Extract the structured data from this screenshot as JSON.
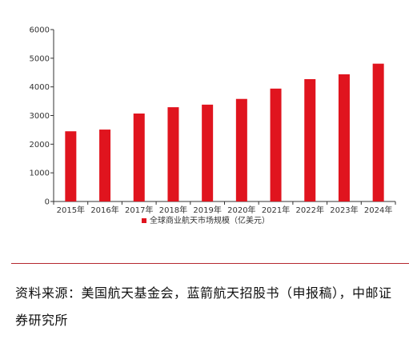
{
  "chart_data": {
    "type": "bar",
    "categories": [
      "2015年",
      "2016年",
      "2017年",
      "2018年",
      "2019年",
      "2020年",
      "2021年",
      "2022年",
      "2023年",
      "2024年"
    ],
    "series": [
      {
        "name": "全球商业航天市场规模（亿美元）",
        "values": [
          2450,
          2510,
          3070,
          3290,
          3380,
          3580,
          3940,
          4270,
          4440,
          4810
        ],
        "color": "#e0141e"
      }
    ],
    "yticks": [
      "0",
      "1000",
      "2000",
      "3000",
      "4000",
      "5000",
      "6000"
    ],
    "ylim": [
      0,
      6000
    ],
    "grid": false,
    "legend_position": "bottom-center"
  },
  "source_note": "资料来源：美国航天基金会，蓝箭航天招股书（申报稿），中邮证券研究所"
}
